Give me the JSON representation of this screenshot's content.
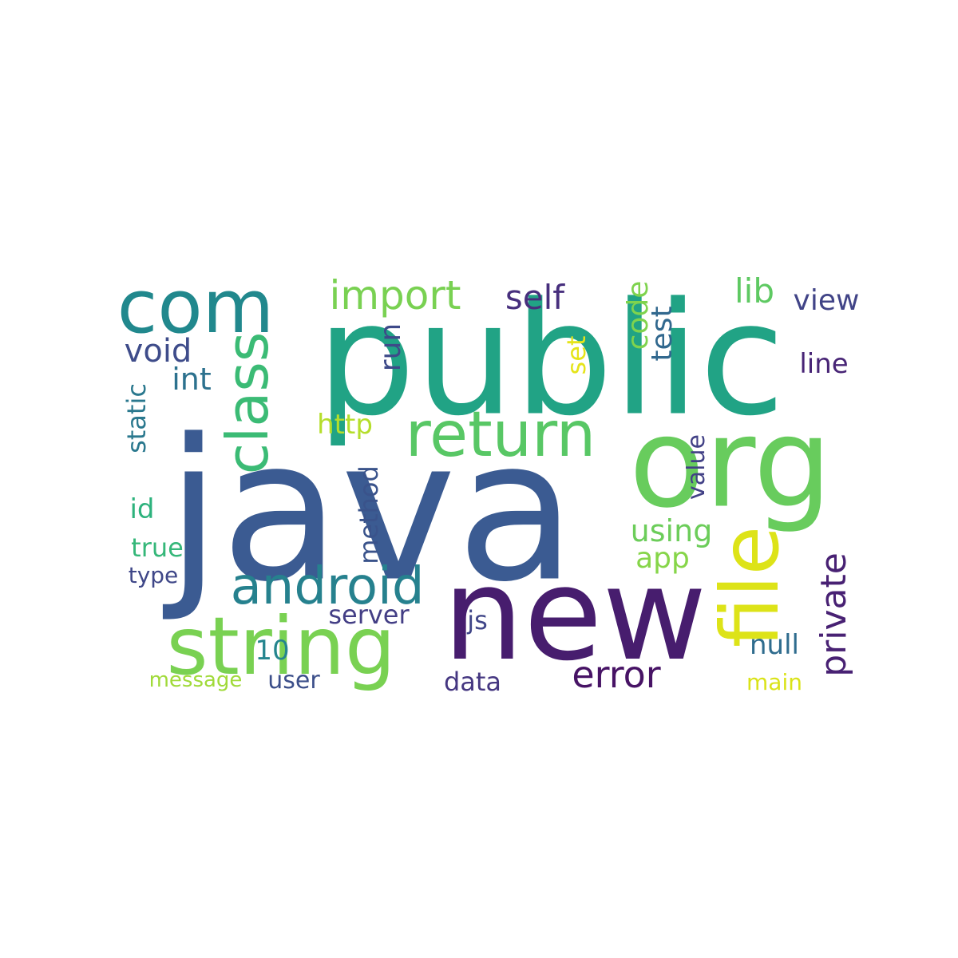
{
  "word_cloud": {
    "words": [
      {
        "id": "java",
        "text": "java",
        "color": "#3b5b92"
      },
      {
        "id": "public",
        "text": "public",
        "color": "#21a385"
      },
      {
        "id": "new",
        "text": "new",
        "color": "#471d6e"
      },
      {
        "id": "org",
        "text": "org",
        "color": "#68cc5d"
      },
      {
        "id": "string",
        "text": "string",
        "color": "#79d152"
      },
      {
        "id": "com",
        "text": "com",
        "color": "#21888d"
      },
      {
        "id": "file",
        "text": "file",
        "color": "#dde318"
      },
      {
        "id": "return",
        "text": "return",
        "color": "#58c765"
      },
      {
        "id": "class",
        "text": "class",
        "color": "#3bbb75"
      },
      {
        "id": "android",
        "text": "android",
        "color": "#26818e"
      },
      {
        "id": "import",
        "text": "import",
        "color": "#79d152"
      },
      {
        "id": "error",
        "text": "error",
        "color": "#471365"
      },
      {
        "id": "private",
        "text": "private",
        "color": "#482173"
      },
      {
        "id": "self",
        "text": "self",
        "color": "#472f7d"
      },
      {
        "id": "lib",
        "text": "lib",
        "color": "#5ec962"
      },
      {
        "id": "view",
        "text": "view",
        "color": "#414487"
      },
      {
        "id": "void",
        "text": "void",
        "color": "#3e4c8a"
      },
      {
        "id": "int",
        "text": "int",
        "color": "#2c718e"
      },
      {
        "id": "run",
        "text": "run",
        "color": "#3e4a89"
      },
      {
        "id": "code",
        "text": "code",
        "color": "#7fd34e"
      },
      {
        "id": "test",
        "text": "test",
        "color": "#31688e"
      },
      {
        "id": "set",
        "text": "set",
        "color": "#e5e419"
      },
      {
        "id": "line",
        "text": "line",
        "color": "#482576"
      },
      {
        "id": "http",
        "text": "http",
        "color": "#b5de2b"
      },
      {
        "id": "static",
        "text": "static",
        "color": "#2a788e"
      },
      {
        "id": "value",
        "text": "value",
        "color": "#424186"
      },
      {
        "id": "method",
        "text": "method",
        "color": "#3a538b"
      },
      {
        "id": "using",
        "text": "using",
        "color": "#6ccd5a"
      },
      {
        "id": "id",
        "text": "id",
        "color": "#2db27d"
      },
      {
        "id": "app",
        "text": "app",
        "color": "#86d549"
      },
      {
        "id": "true",
        "text": "true",
        "color": "#35b779"
      },
      {
        "id": "type",
        "text": "type",
        "color": "#3f4788"
      },
      {
        "id": "server",
        "text": "server",
        "color": "#433e85"
      },
      {
        "id": "js",
        "text": "js",
        "color": "#404688"
      },
      {
        "id": "10",
        "text": "10",
        "color": "#25858e"
      },
      {
        "id": "null",
        "text": "null",
        "color": "#2f6c8e"
      },
      {
        "id": "message",
        "text": "message",
        "color": "#a0da39"
      },
      {
        "id": "user",
        "text": "user",
        "color": "#3c4f8a"
      },
      {
        "id": "data",
        "text": "data",
        "color": "#453781"
      },
      {
        "id": "main",
        "text": "main",
        "color": "#dae319"
      }
    ]
  }
}
